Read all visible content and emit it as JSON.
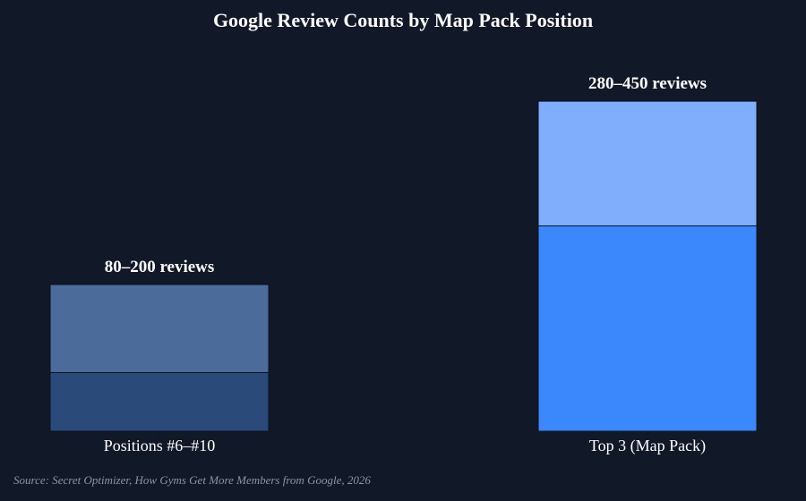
{
  "chart_data": {
    "type": "bar",
    "title": "Google Review Counts by Map Pack Position",
    "xlabel": "",
    "ylabel": "",
    "ylim": [
      0,
      480
    ],
    "grid": false,
    "legend": "none",
    "categories": [
      "Positions #6–#10",
      "Top 3 (Map Pack)"
    ],
    "range_labels": [
      "80–200 reviews",
      "280–450 reviews"
    ],
    "ranges": [
      {
        "low": 80,
        "high": 200
      },
      {
        "low": 280,
        "high": 450
      }
    ],
    "colors": [
      {
        "low": "#2a4a7a",
        "high": "#4b6b9b"
      },
      {
        "low": "#3b88fd",
        "high": "#80aefd"
      }
    ],
    "source": "Source: Secret Optimizer, How Gyms Get More Members from Google, 2026"
  }
}
